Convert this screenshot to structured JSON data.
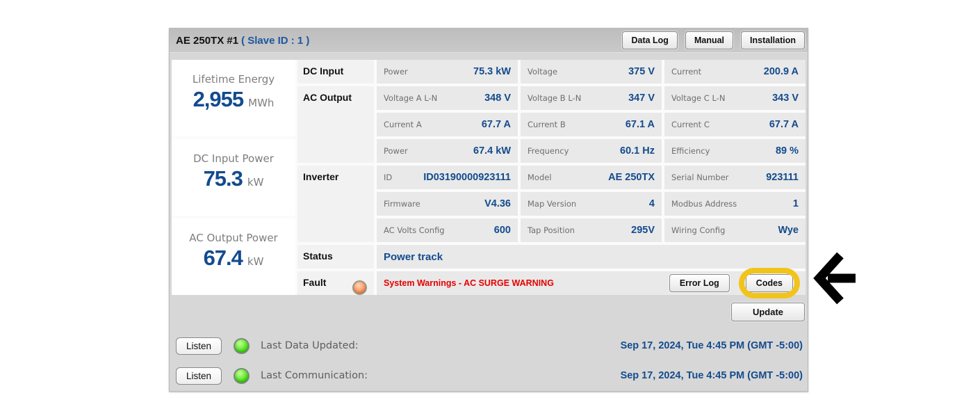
{
  "header": {
    "model": "AE 250TX #1",
    "slave": "( Slave ID : 1 )",
    "buttons": [
      "Data Log",
      "Manual",
      "Installation"
    ]
  },
  "metrics": [
    {
      "label": "Lifetime Energy",
      "value": "2,955",
      "unit": "MWh"
    },
    {
      "label": "DC Input Power",
      "value": "75.3",
      "unit": "kW"
    },
    {
      "label": "AC Output Power",
      "value": "67.4",
      "unit": "kW"
    }
  ],
  "table": {
    "sections": [
      {
        "name": "DC Input",
        "rows": [
          [
            {
              "label": "Power",
              "value": "75.3 kW"
            },
            {
              "label": "Voltage",
              "value": "375 V"
            },
            {
              "label": "Current",
              "value": "200.9 A"
            }
          ]
        ]
      },
      {
        "name": "AC Output",
        "rows": [
          [
            {
              "label": "Voltage A L-N",
              "value": "348 V"
            },
            {
              "label": "Voltage B L-N",
              "value": "347 V"
            },
            {
              "label": "Voltage C L-N",
              "value": "343 V"
            }
          ],
          [
            {
              "label": "Current A",
              "value": "67.7 A"
            },
            {
              "label": "Current B",
              "value": "67.1 A"
            },
            {
              "label": "Current C",
              "value": "67.7 A"
            }
          ],
          [
            {
              "label": "Power",
              "value": "67.4 kW"
            },
            {
              "label": "Frequency",
              "value": "60.1 Hz"
            },
            {
              "label": "Efficiency",
              "value": "89 %"
            }
          ]
        ]
      },
      {
        "name": "Inverter",
        "rows": [
          [
            {
              "label": "ID",
              "value": "ID03190000923111"
            },
            {
              "label": "Model",
              "value": "AE 250TX"
            },
            {
              "label": "Serial Number",
              "value": "923111"
            }
          ],
          [
            {
              "label": "Firmware",
              "value": "V4.36"
            },
            {
              "label": "Map Version",
              "value": "4"
            },
            {
              "label": "Modbus Address",
              "value": "1"
            }
          ],
          [
            {
              "label": "AC Volts Config",
              "value": "600"
            },
            {
              "label": "Tap Position",
              "value": "295V"
            },
            {
              "label": "Wiring Config",
              "value": "Wye"
            }
          ]
        ]
      }
    ],
    "status": {
      "label": "Status",
      "value": "Power track"
    },
    "fault": {
      "label": "Fault",
      "led": "orange-led",
      "message": "System Warnings - AC SURGE WARNING",
      "error_log_button": "Error Log",
      "codes_button": "Codes"
    }
  },
  "update_button": "Update",
  "footer": {
    "rows": [
      {
        "button": "Listen",
        "led": "green-led",
        "label": "Last Data Updated:",
        "timestamp": "Sep 17, 2024, Tue 4:45 PM (GMT -5:00)"
      },
      {
        "button": "Listen",
        "led": "green-led",
        "label": "Last Communication:",
        "timestamp": "Sep 17, 2024, Tue 4:45 PM (GMT -5:00)"
      }
    ]
  },
  "annotation": {
    "target": "Codes",
    "highlight_color": "#f2c41b",
    "arrow_color": "#000000",
    "arrow_direction": "left"
  },
  "colors": {
    "value_navy": "#134b8d",
    "fault_red": "#e60000",
    "panel_gray": "#d7d7d7",
    "cell_gray": "#e9e9e9",
    "led_green": "#52e21e",
    "led_orange": "#ff9a66"
  }
}
